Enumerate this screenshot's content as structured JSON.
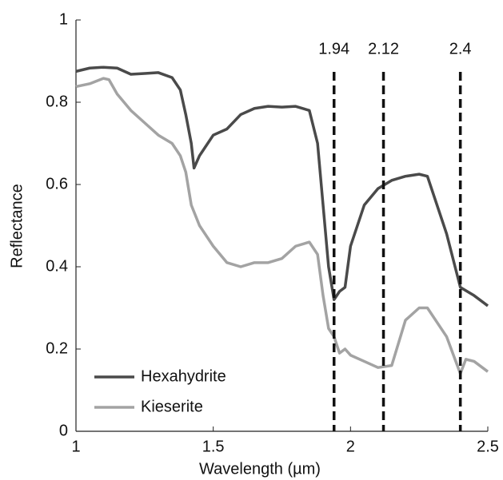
{
  "chart_data": {
    "type": "line",
    "xlabel": "Wavelength (µm)",
    "ylabel": "Reflectance",
    "xlim": [
      1,
      2.5
    ],
    "xticks": [
      1,
      1.5,
      2,
      2.5
    ],
    "ylim": [
      0,
      1
    ],
    "yticks": [
      0,
      0.2,
      0.4,
      0.6,
      0.8,
      1
    ],
    "vlines": [
      1.94,
      2.12,
      2.4
    ],
    "legend": "lower left",
    "series": [
      {
        "name": "Hexahydrite",
        "color": "#4a4a4a",
        "x": [
          1.0,
          1.05,
          1.1,
          1.15,
          1.2,
          1.25,
          1.3,
          1.35,
          1.38,
          1.4,
          1.42,
          1.43,
          1.45,
          1.5,
          1.55,
          1.6,
          1.65,
          1.7,
          1.75,
          1.8,
          1.85,
          1.88,
          1.9,
          1.92,
          1.94,
          1.96,
          1.98,
          2.0,
          2.05,
          2.1,
          2.15,
          2.2,
          2.25,
          2.28,
          2.3,
          2.35,
          2.4,
          2.45,
          2.5
        ],
        "values": [
          0.875,
          0.883,
          0.885,
          0.883,
          0.868,
          0.87,
          0.872,
          0.86,
          0.83,
          0.77,
          0.7,
          0.64,
          0.67,
          0.72,
          0.735,
          0.77,
          0.785,
          0.79,
          0.788,
          0.79,
          0.78,
          0.7,
          0.55,
          0.4,
          0.32,
          0.34,
          0.35,
          0.45,
          0.55,
          0.59,
          0.61,
          0.62,
          0.625,
          0.62,
          0.58,
          0.48,
          0.35,
          0.33,
          0.305
        ]
      },
      {
        "name": "Kieserite",
        "color": "#a3a3a3",
        "x": [
          1.0,
          1.05,
          1.1,
          1.12,
          1.15,
          1.2,
          1.25,
          1.3,
          1.35,
          1.38,
          1.4,
          1.42,
          1.45,
          1.5,
          1.55,
          1.6,
          1.65,
          1.7,
          1.75,
          1.8,
          1.85,
          1.88,
          1.9,
          1.92,
          1.94,
          1.96,
          1.98,
          2.0,
          2.05,
          2.1,
          2.15,
          2.2,
          2.25,
          2.28,
          2.3,
          2.35,
          2.4,
          2.42,
          2.45,
          2.5
        ],
        "values": [
          0.838,
          0.845,
          0.858,
          0.855,
          0.82,
          0.78,
          0.75,
          0.72,
          0.7,
          0.67,
          0.63,
          0.55,
          0.5,
          0.45,
          0.41,
          0.4,
          0.41,
          0.41,
          0.42,
          0.45,
          0.46,
          0.43,
          0.33,
          0.25,
          0.23,
          0.19,
          0.2,
          0.185,
          0.17,
          0.155,
          0.16,
          0.27,
          0.3,
          0.3,
          0.28,
          0.23,
          0.14,
          0.175,
          0.17,
          0.145
        ]
      }
    ]
  }
}
